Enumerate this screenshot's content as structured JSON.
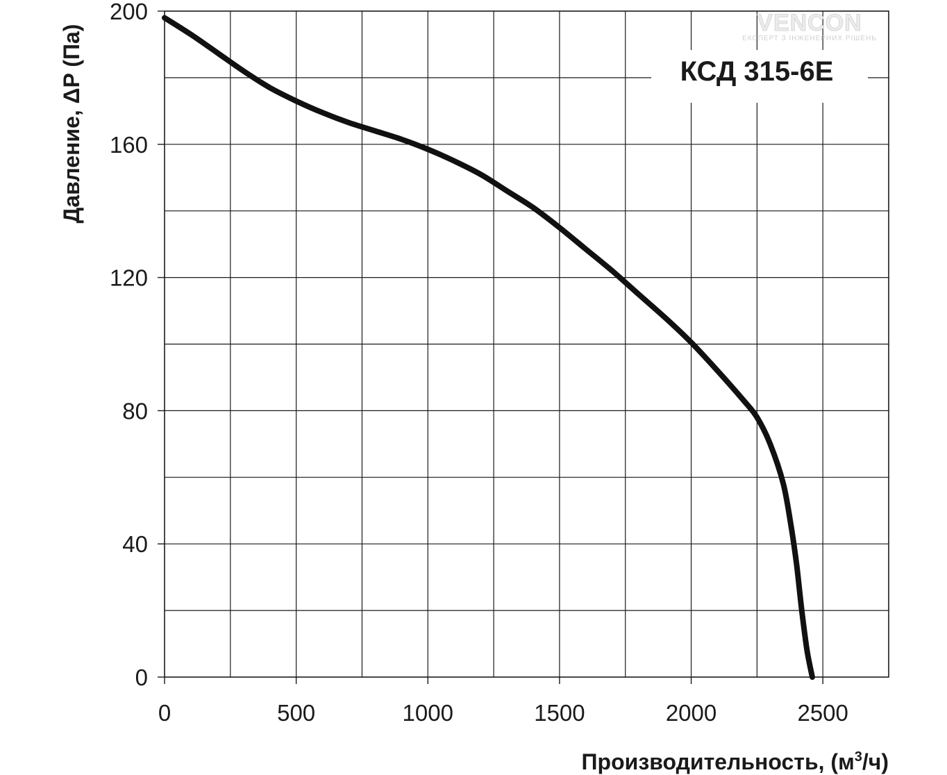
{
  "chart_data": {
    "type": "line",
    "title": "КСД 315-6Е",
    "xlabel": "Производительность, (м",
    "xlabel_sup": "3",
    "xlabel_tail": "/ч)",
    "ylabel": "Давление, ΔP (Па)",
    "xlim": [
      0,
      2750
    ],
    "ylim": [
      0,
      200
    ],
    "x_ticks": [
      "0",
      "500",
      "1000",
      "1500",
      "2000",
      "2500"
    ],
    "y_ticks": [
      "0",
      "40",
      "80",
      "120",
      "160",
      "200"
    ],
    "grid": true,
    "series": [
      {
        "x": [
          0,
          100,
          200,
          300,
          400,
          500,
          600,
          700,
          800,
          900,
          1000,
          1100,
          1200,
          1300,
          1400,
          1500,
          1600,
          1700,
          1800,
          1900,
          2000,
          2100,
          2200,
          2250,
          2300,
          2350,
          2380,
          2400,
          2420,
          2440,
          2460
        ],
        "y": [
          198,
          193,
          187.5,
          182,
          177,
          173,
          169.5,
          166.5,
          164,
          161.5,
          158.5,
          155,
          151,
          146,
          141,
          135,
          128.5,
          122,
          115,
          108,
          100.5,
          92,
          83,
          78,
          70,
          58,
          45,
          34,
          20,
          8,
          0
        ]
      }
    ]
  },
  "logo": {
    "text": "VENCON",
    "tagline": "ЕКСПЕРТ З ІНЖЕНЕРНИХ РІШЕНЬ"
  },
  "colors": {
    "curve": "#111111",
    "grid": "#1a1a1a",
    "logo_accent": "#7ab648"
  }
}
